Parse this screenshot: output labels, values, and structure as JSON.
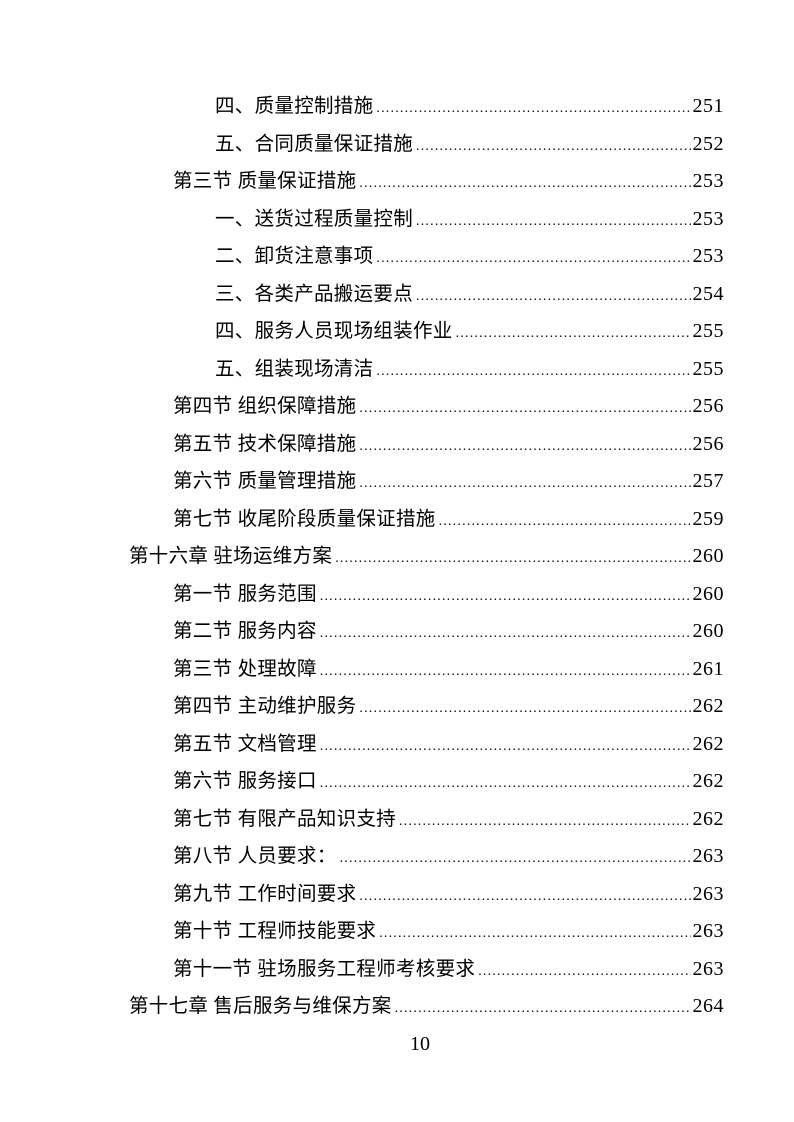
{
  "document": {
    "kind": "table-of-contents-page",
    "text_color": "#000000",
    "background_color": "#ffffff",
    "footer_page_number": "10"
  },
  "toc": {
    "entries": [
      {
        "level": 3,
        "title": "四、质量控制措施",
        "page": "251"
      },
      {
        "level": 3,
        "title": "五、合同质量保证措施",
        "page": "252"
      },
      {
        "level": 2,
        "title": "第三节 质量保证措施",
        "page": "253"
      },
      {
        "level": 3,
        "title": "一、送货过程质量控制",
        "page": "253"
      },
      {
        "level": 3,
        "title": "二、卸货注意事项",
        "page": "253"
      },
      {
        "level": 3,
        "title": "三、各类产品搬运要点",
        "page": "254"
      },
      {
        "level": 3,
        "title": "四、服务人员现场组装作业",
        "page": "255"
      },
      {
        "level": 3,
        "title": "五、组装现场清洁",
        "page": "255"
      },
      {
        "level": 2,
        "title": "第四节 组织保障措施",
        "page": "256"
      },
      {
        "level": 2,
        "title": "第五节 技术保障措施",
        "page": "256"
      },
      {
        "level": 2,
        "title": "第六节 质量管理措施",
        "page": "257"
      },
      {
        "level": 2,
        "title": "第七节 收尾阶段质量保证措施",
        "page": "259"
      },
      {
        "level": 1,
        "title": "第十六章 驻场运维方案",
        "page": "260"
      },
      {
        "level": 2,
        "title": "第一节 服务范围",
        "page": "260"
      },
      {
        "level": 2,
        "title": "第二节 服务内容",
        "page": "260"
      },
      {
        "level": 2,
        "title": "第三节 处理故障",
        "page": "261"
      },
      {
        "level": 2,
        "title": "第四节 主动维护服务",
        "page": "262"
      },
      {
        "level": 2,
        "title": "第五节 文档管理",
        "page": "262"
      },
      {
        "level": 2,
        "title": "第六节 服务接口",
        "page": "262"
      },
      {
        "level": 2,
        "title": "第七节 有限产品知识支持",
        "page": "262"
      },
      {
        "level": 2,
        "title": "第八节 人员要求：",
        "page": "263"
      },
      {
        "level": 2,
        "title": "第九节 工作时间要求",
        "page": "263"
      },
      {
        "level": 2,
        "title": "第十节 工程师技能要求",
        "page": "263"
      },
      {
        "level": 2,
        "title": "第十一节 驻场服务工程师考核要求",
        "page": "263"
      },
      {
        "level": 1,
        "title": "第十七章 售后服务与维保方案",
        "page": "264"
      }
    ]
  }
}
